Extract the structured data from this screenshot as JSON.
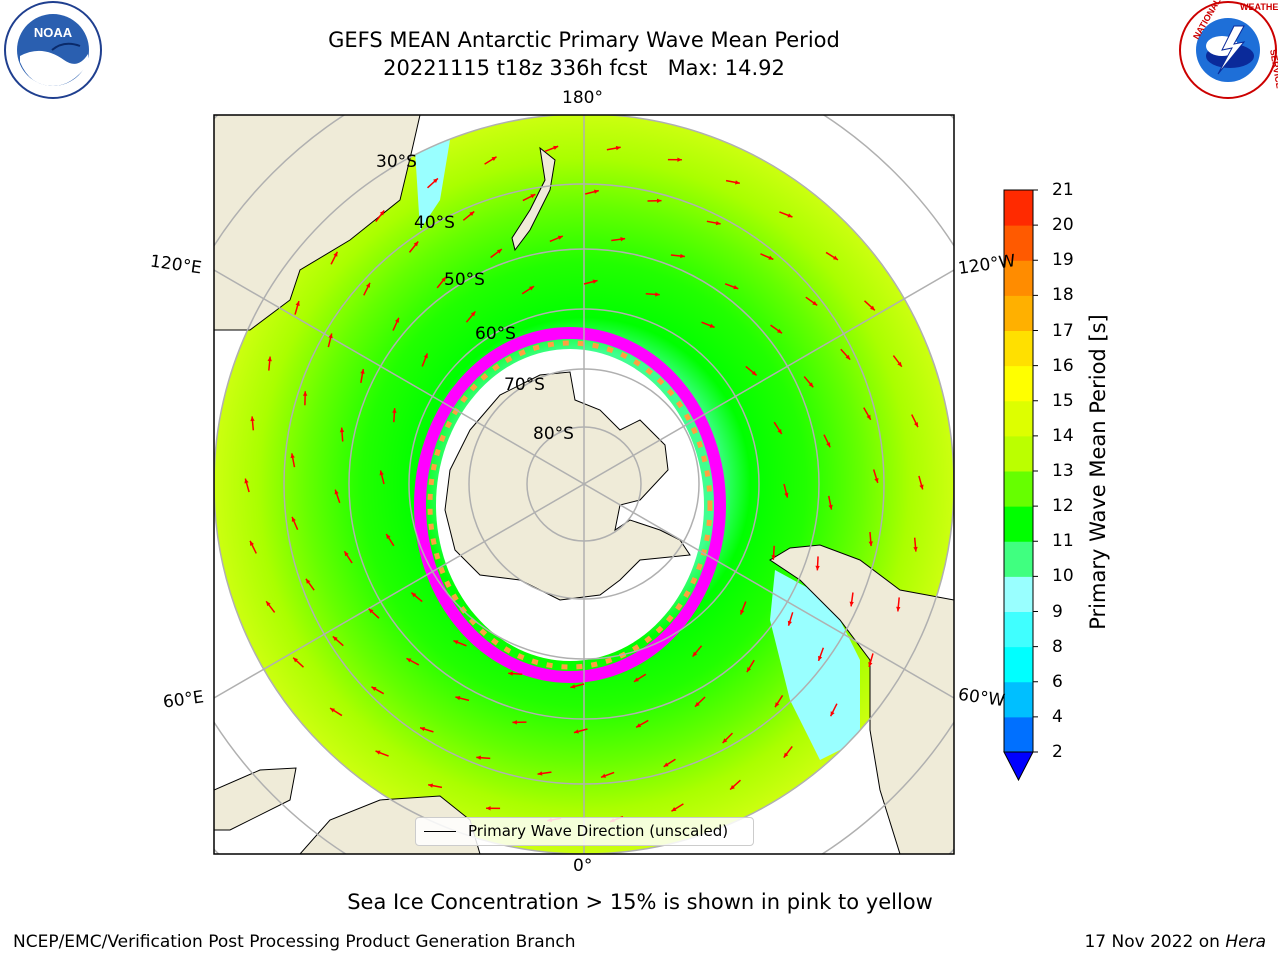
{
  "title": {
    "line1": "GEFS MEAN Antarctic Primary Wave Mean Period",
    "line2": "20221115 t18z 336h fcst   Max: 14.92"
  },
  "logos": {
    "left": {
      "name": "noaa-logo",
      "text": "NOAA",
      "ring_text": "NATIONAL OCEANIC AND ATMOSPHERIC ADMINISTRATION · U.S. DEPARTMENT OF COMMERCE"
    },
    "right": {
      "name": "nws-logo",
      "ring_text": "NATIONAL WEATHER SERVICE"
    }
  },
  "map": {
    "projection": "south-polar-stereographic",
    "lon_labels": {
      "top": "180°",
      "bottom": "0°",
      "upper_left": "120°E",
      "upper_right": "120°W",
      "lower_left": "60°E",
      "lower_right": "60°W"
    },
    "lat_labels": [
      "30°S",
      "40°S",
      "50°S",
      "60°S",
      "70°S",
      "80°S"
    ],
    "legend_label": "Primary Wave Direction (unscaled)",
    "colors": {
      "land": "#efebd8",
      "ocean_low": "#00ff00",
      "arrow": "#ff0000",
      "ice_pink": "#ff00ff",
      "ice_orange": "#ffa040",
      "gridline": "#b0b0b0"
    }
  },
  "colorbar": {
    "title": "Primary Wave Mean Period [s]",
    "tick_labels": [
      "2",
      "4",
      "6",
      "8",
      "9",
      "10",
      "11",
      "12",
      "13",
      "14",
      "15",
      "16",
      "17",
      "18",
      "19",
      "20",
      "21"
    ],
    "colors": [
      "#0070ff",
      "#00bfff",
      "#00ffff",
      "#40ffff",
      "#99ffff",
      "#40ff80",
      "#00ff00",
      "#66ff00",
      "#bbff00",
      "#ddff00",
      "#ffff00",
      "#ffe000",
      "#ffb000",
      "#ff8c00",
      "#ff5a00",
      "#ff2a00"
    ],
    "under_color": "#0000ff"
  },
  "note": "Sea Ice Concentration > 15% is shown in pink to yellow",
  "footer": {
    "left": "NCEP/EMC/Verification Post Processing Product Generation Branch",
    "right_prefix": "17 Nov 2022 on",
    "right_system": "Hera"
  }
}
